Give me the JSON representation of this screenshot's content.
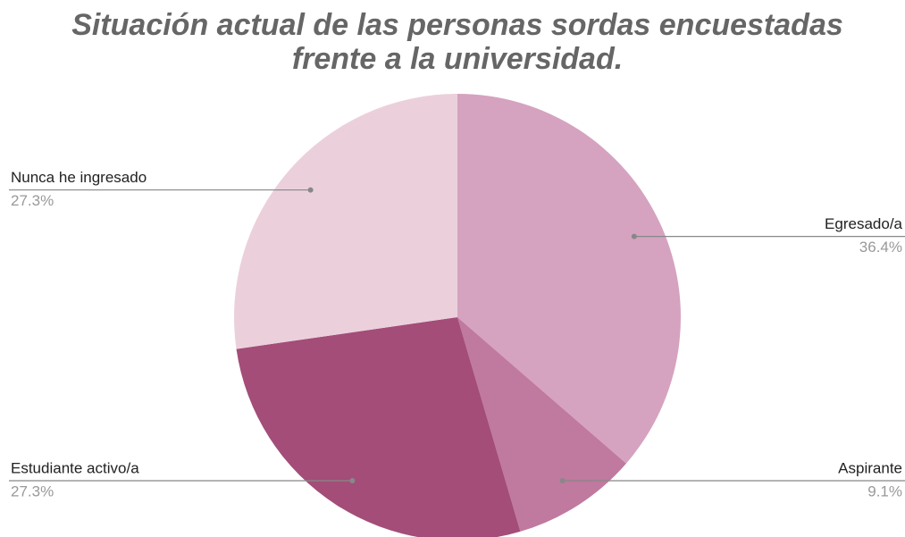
{
  "chart_data": {
    "type": "pie",
    "title": [
      "Situación actual de las personas sordas encuestadas",
      "frente a la universidad."
    ],
    "categories": [
      "Egresado/a",
      "Aspirante",
      "Estudiante activo/a",
      "Nunca he ingresado"
    ],
    "values": [
      36.4,
      9.1,
      27.3,
      27.3
    ],
    "value_labels": [
      "36.4%",
      "9.1%",
      "27.3%",
      "27.3%"
    ],
    "colors": [
      "#d5a3bf",
      "#c0799f",
      "#a34d78",
      "#ebd0dc"
    ]
  }
}
